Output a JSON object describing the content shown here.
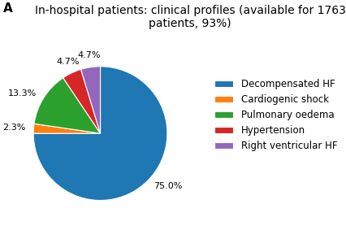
{
  "chart_data": {
    "type": "pie",
    "title": "In-hospital patients: clinical profiles (available for 1763 patients, 93%)",
    "annotations": [
      "A"
    ],
    "categories": [
      "Decompensated HF",
      "Cardiogenic shock",
      "Pulmonary oedema",
      "Hypertension",
      "Right ventricular HF"
    ],
    "values": [
      75.0,
      2.3,
      13.3,
      4.7,
      4.7
    ],
    "value_labels": [
      "75.0%",
      "2.3%",
      "13.3%",
      "4.7%",
      "4.7%"
    ],
    "data_labels": true,
    "legend": "right"
  }
}
